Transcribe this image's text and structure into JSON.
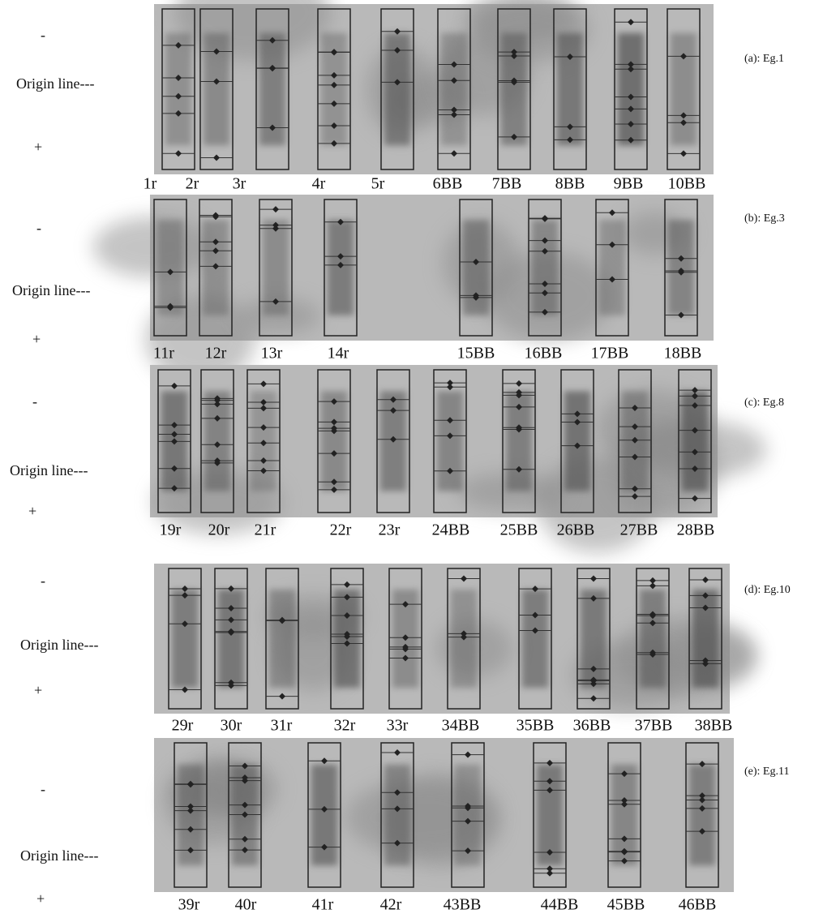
{
  "panels": [
    {
      "label": "(a): Eg.1",
      "minus": "-",
      "origin": "Origin line---",
      "plus": "+",
      "lanes": [
        "1r",
        "2r",
        "3r",
        "4r",
        "5r",
        "6BB",
        "7BB",
        "8BB",
        "9BB",
        "10BB"
      ]
    },
    {
      "label": "(b): Eg.3",
      "minus": "-",
      "origin": "Origin line---",
      "plus": "+",
      "lanes": [
        "11r",
        "12r",
        "13r",
        "14r",
        "15BB",
        "16BB",
        "17BB",
        "18BB"
      ]
    },
    {
      "label": "(c): Eg.8",
      "minus": "-",
      "origin": "Origin line---",
      "plus": "+",
      "lanes": [
        "19r",
        "20r",
        "21r",
        "22r",
        "23r",
        "24BB",
        "25BB",
        "26BB",
        "27BB",
        "28BB"
      ]
    },
    {
      "label": "(d): Eg.10",
      "minus": "-",
      "origin": "Origin line---",
      "plus": "+",
      "lanes": [
        "29r",
        "30r",
        "31r",
        "32r",
        "33r",
        "34BB",
        "35BB",
        "36BB",
        "37BB",
        "38BB"
      ]
    },
    {
      "label": "(e): Eg.11",
      "minus": "-",
      "origin": "Origin line---",
      "plus": "+",
      "lanes": [
        "39r",
        "40r",
        "41r",
        "42r",
        "43BB",
        "44BB",
        "45BB",
        "46BB"
      ]
    }
  ]
}
